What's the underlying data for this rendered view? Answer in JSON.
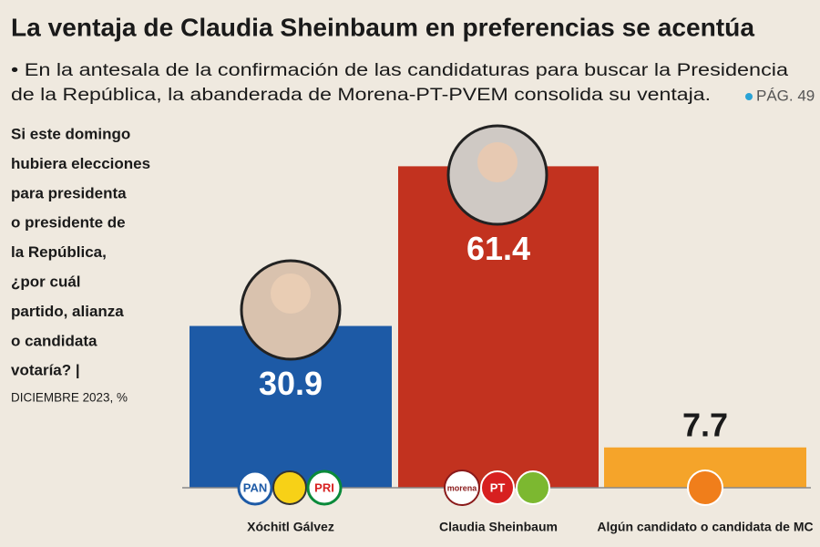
{
  "chart_data": {
    "type": "bar",
    "title": "La ventaja de Claudia Sheinbaum en preferencias se acentúa",
    "subtitle": [
      "• En la antesala de la confirmación de las candidaturas para buscar la Presidencia",
      "de la República, la abanderada de Morena-PT-PVEM consolida su ventaja."
    ],
    "page_ref": "PÁG. 49",
    "question": [
      "Si este domingo",
      "hubiera elecciones",
      "para presidenta",
      "o presidente de",
      "la República,",
      "¿por cuál",
      "partido, alianza",
      "o candidata",
      "votaría? |"
    ],
    "note": "DICIEMBRE 2023, %",
    "categories": [
      "Xóchitl Gálvez",
      "Claudia Sheinbaum",
      "Algún candidato o candidata de MC"
    ],
    "values": [
      30.9,
      61.4,
      7.7
    ],
    "colors": [
      "#1d5aa6",
      "#c2321f",
      "#f5a42a"
    ],
    "party_labels": [
      [
        "PAN",
        "PRI"
      ],
      [
        "morena",
        "PT"
      ],
      []
    ],
    "ylim": [
      0,
      70
    ]
  }
}
